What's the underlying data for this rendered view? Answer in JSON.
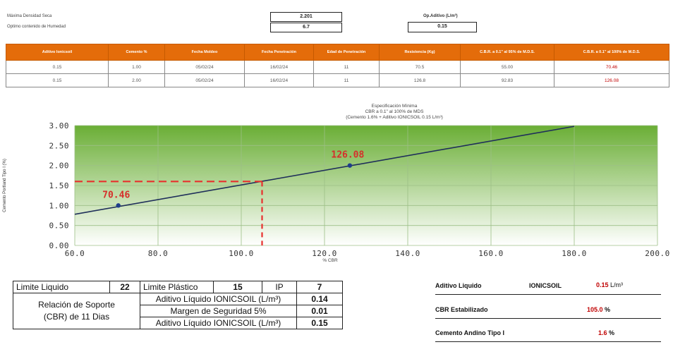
{
  "header": {
    "max_density_label": "Máxima Densidad Seca",
    "optimum_moisture_label": "Optimo contenido de Humedad",
    "max_density_value": "2.201",
    "optimum_moisture_value": "6.7",
    "op_additive_label": "Op.Aditivo (L/m³)",
    "op_additive_value": "0.15"
  },
  "results_table": {
    "columns": [
      "Aditivo Ionicsoil",
      "Cemento %",
      "Fecha Moldeo",
      "Fecha Penetración",
      "Edad de Penetración",
      "Resistencia (Kg)",
      "C.B.R. a 0.1\" al 95% de M.D.S.",
      "C.B.R. a 0.1\" al 100% de M.D.S."
    ],
    "rows": [
      [
        "0.15",
        "1.00",
        "05/02/24",
        "16/02/24",
        "11",
        "70.5",
        "55.00",
        "70.46"
      ],
      [
        "0.15",
        "2.00",
        "05/02/24",
        "16/02/24",
        "11",
        "126.8",
        "92.83",
        "126.08"
      ]
    ]
  },
  "chart_data": {
    "type": "line",
    "title": "Especificación Mínima",
    "subtitle": "CBR a 0.1\" al 100% de MDS",
    "subtitle2": "(Cemento 1.6% + Aditivo IONICSOIL 0.15 L/m³)",
    "xlabel": "% CBR",
    "ylabel": "Cemento Portland Tipo I (%)",
    "xlim": [
      60,
      200
    ],
    "ylim": [
      0,
      3
    ],
    "xticks": [
      60,
      80,
      100,
      120,
      140,
      160,
      180,
      200
    ],
    "xtick_labels": [
      "60.0",
      "80.0",
      "100.0",
      "120.0",
      "140.0",
      "160.0",
      "180.0",
      "200.0"
    ],
    "yticks": [
      0,
      0.5,
      1,
      1.5,
      2,
      2.5,
      3
    ],
    "ytick_labels": [
      "0.00",
      "0.50",
      "1.00",
      "1.50",
      "2.00",
      "2.50",
      "3.00"
    ],
    "trend_line": {
      "x": [
        60,
        180
      ],
      "y": [
        0.78,
        2.98
      ]
    },
    "points": [
      {
        "x": 70.46,
        "y": 1.0,
        "label": "70.46"
      },
      {
        "x": 126.08,
        "y": 2.0,
        "label": "126.08"
      }
    ],
    "spec_point": {
      "x": 105,
      "y": 1.6
    },
    "grid": true,
    "colors": {
      "fill_top": "#6aae35",
      "fill_bottom": "#ffffff",
      "line": "#1f2f5a",
      "point": "#1f3d8a",
      "dashed": "#e8302e",
      "label": "#d62f2b"
    }
  },
  "limits_table": {
    "liquid_limit_label": "Limite Liquido",
    "liquid_limit_value": "22",
    "plastic_limit_label": "Limite Plástico",
    "plastic_limit_value": "15",
    "ip_label": "IP",
    "ip_value": "7",
    "relation_label_1": "Relación de Soporte",
    "relation_label_2": "(CBR)  de 11 Dias",
    "additive_label_1": "Aditivo Líquido IONICSOIL (L/m³)",
    "additive_value_1": "0.14",
    "margin_label": "Margen de Seguridad 5%",
    "margin_value": "0.01",
    "additive_label_2": "Aditivo Líquido IONICSOIL (L/m³)",
    "additive_value_2": "0.15"
  },
  "summary": {
    "additive_label": "Aditivo Liquido",
    "additive_product": "IONICSOIL",
    "additive_value": "0.15",
    "additive_unit": "L/m³",
    "cbr_label": "CBR Estabilizado",
    "cbr_value": "105.0",
    "cbr_unit": "%",
    "cement_label": "Cemento Andino Tipo I",
    "cement_value": "1.6",
    "cement_unit": "%"
  }
}
